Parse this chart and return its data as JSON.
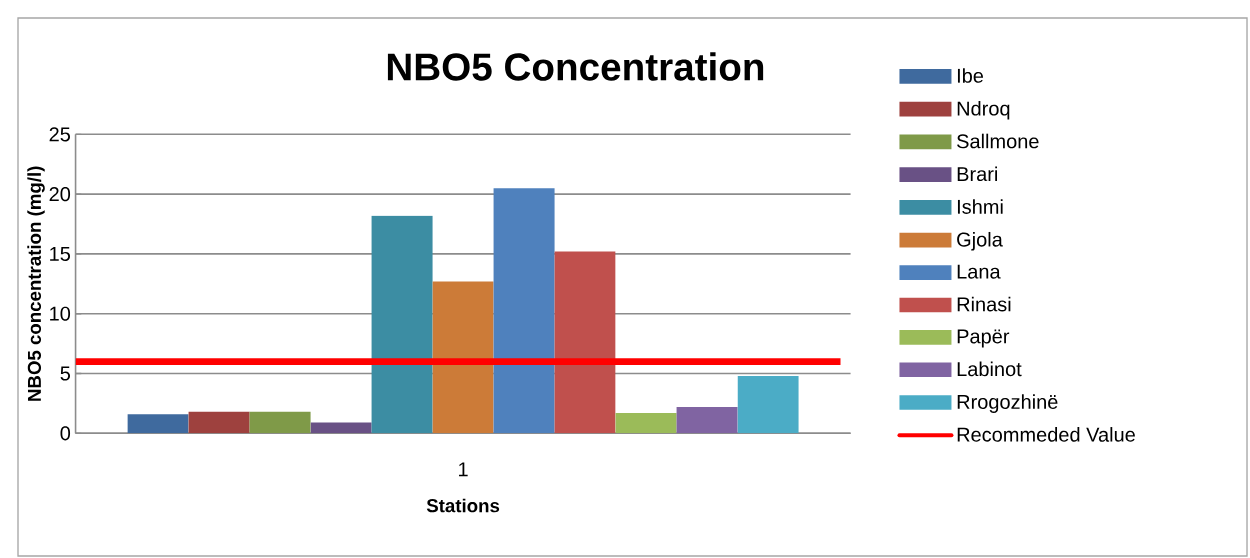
{
  "chart_data": {
    "type": "bar",
    "title": "NBO5 Concentration",
    "xlabel": "Stations",
    "ylabel": "NBO5 concentration (mg/l)",
    "categories": [
      "1"
    ],
    "series": [
      {
        "name": "Ibe",
        "color": "#3f6a9e",
        "values": [
          1.6
        ]
      },
      {
        "name": "Ndroq",
        "color": "#9e413e",
        "values": [
          1.8
        ]
      },
      {
        "name": "Sallmone",
        "color": "#7f9a48",
        "values": [
          1.8
        ]
      },
      {
        "name": "Brari",
        "color": "#695185",
        "values": [
          0.9
        ]
      },
      {
        "name": "Ishmi",
        "color": "#3c8da3",
        "values": [
          18.2
        ]
      },
      {
        "name": "Gjola",
        "color": "#cc7b38",
        "values": [
          12.7
        ]
      },
      {
        "name": "Lana",
        "color": "#4f81bd",
        "values": [
          20.5
        ]
      },
      {
        "name": "Rinasi",
        "color": "#c0504d",
        "values": [
          15.2
        ]
      },
      {
        "name": "Papër",
        "color": "#9bbb59",
        "values": [
          1.7
        ]
      },
      {
        "name": "Labinot",
        "color": "#8064a2",
        "values": [
          2.2
        ]
      },
      {
        "name": "Rrogozhinë",
        "color": "#4bacc6",
        "values": [
          4.8
        ]
      }
    ],
    "ylim": [
      0,
      25
    ],
    "yticks": [
      0,
      5,
      10,
      15,
      20,
      25
    ],
    "grid": "y",
    "legend": "right",
    "ref_lines": [
      {
        "axis": "y",
        "value": 6,
        "label": "Recommeded Value",
        "color": "#ff0000"
      }
    ]
  }
}
